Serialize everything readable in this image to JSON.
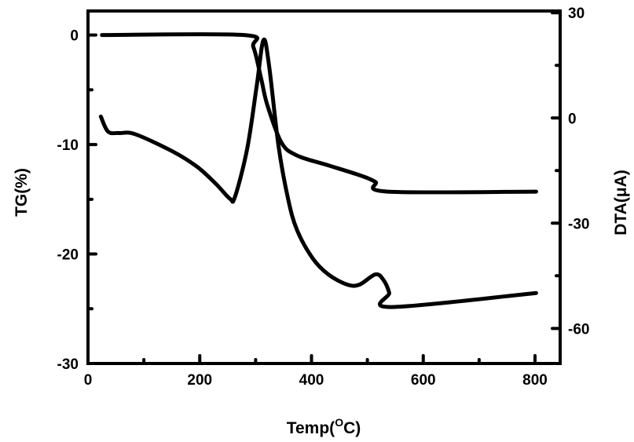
{
  "chart_data": {
    "type": "line",
    "title": "",
    "xlabel": "Temp(°C)",
    "xlabel_parts": {
      "main": "Temp(",
      "sup": "O",
      "end": "C)"
    },
    "ylabel_left": "TG(%)",
    "ylabel_right": "DTA(μA)",
    "xlim": [
      0,
      845
    ],
    "ylim_left": [
      -30,
      2.2
    ],
    "ylim_right": [
      -70,
      30.5
    ],
    "x_ticks": [
      0,
      200,
      400,
      600,
      800
    ],
    "x_minor_ticks": [
      100,
      300,
      500,
      700
    ],
    "y_left_ticks": [
      0,
      -10,
      -20,
      -30
    ],
    "y_left_minor_ticks": [
      -5,
      -15,
      -25
    ],
    "y_right_ticks": [
      30,
      0,
      -30,
      -60
    ],
    "y_right_minor_ticks": [
      15,
      -15,
      -45
    ],
    "grid": false,
    "series": [
      {
        "name": "TG",
        "axis": "left",
        "x": [
          25,
          279,
          296,
          310,
          321,
          346,
          374,
          430,
          486,
          514,
          536,
          802
        ],
        "y": [
          0,
          0,
          -1.1,
          -4,
          -6.4,
          -9.8,
          -11,
          -11.9,
          -12.8,
          -13.4,
          -14.3,
          -14.3
        ]
      },
      {
        "name": "DTA",
        "axis": "right",
        "x": [
          23,
          36,
          56,
          84,
          151,
          196,
          229,
          254,
          263,
          285,
          302,
          314,
          324,
          341,
          358,
          374,
          402,
          430,
          464,
          486,
          514,
          528,
          539,
          542,
          802
        ],
        "y": [
          0.4,
          -3.9,
          -4.3,
          -4.6,
          -9.5,
          -14,
          -18.8,
          -23,
          -22.5,
          -8.7,
          9.2,
          22.2,
          15,
          -8,
          -23,
          -31.9,
          -40,
          -44.6,
          -47.5,
          -47.5,
          -44.6,
          -46,
          -49.8,
          -53.9,
          -49.9
        ]
      }
    ]
  }
}
